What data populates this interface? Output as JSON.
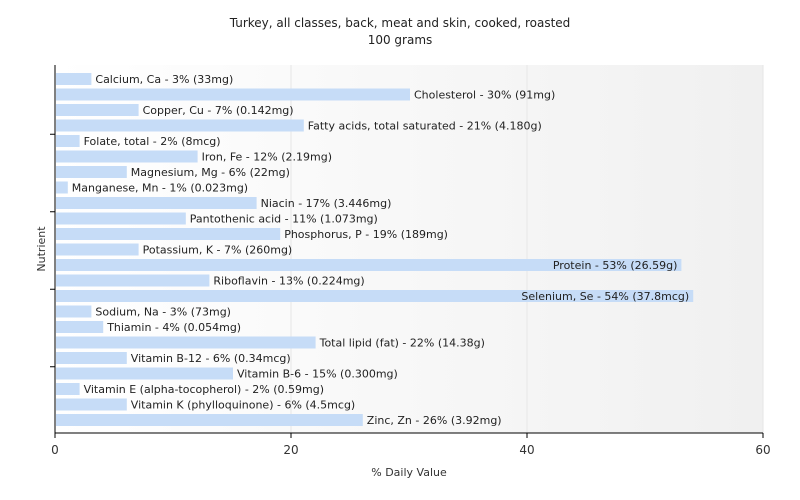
{
  "chart_data": {
    "type": "bar",
    "orientation": "horizontal",
    "title": "Turkey, all classes, back, meat and skin, cooked, roasted",
    "subtitle": "100 grams",
    "xlabel": "% Daily Value",
    "ylabel": "Nutrient",
    "xlim": [
      0,
      60
    ],
    "xticks": [
      "0",
      "20",
      "40",
      "60"
    ],
    "grid": true,
    "colors": {
      "bar": "#c6dcf7",
      "grid": "#e6e6e6",
      "axis": "#000000"
    },
    "bars": [
      {
        "value": 3,
        "label": "Calcium, Ca - 3% (33mg)"
      },
      {
        "value": 30,
        "label": "Cholesterol - 30% (91mg)"
      },
      {
        "value": 7,
        "label": "Copper, Cu - 7% (0.142mg)"
      },
      {
        "value": 21,
        "label": "Fatty acids, total saturated - 21% (4.180g)"
      },
      {
        "value": 2,
        "label": "Folate, total - 2% (8mcg)"
      },
      {
        "value": 12,
        "label": "Iron, Fe - 12% (2.19mg)"
      },
      {
        "value": 6,
        "label": "Magnesium, Mg - 6% (22mg)"
      },
      {
        "value": 1,
        "label": "Manganese, Mn - 1% (0.023mg)"
      },
      {
        "value": 17,
        "label": "Niacin - 17% (3.446mg)"
      },
      {
        "value": 11,
        "label": "Pantothenic acid - 11% (1.073mg)"
      },
      {
        "value": 19,
        "label": "Phosphorus, P - 19% (189mg)"
      },
      {
        "value": 7,
        "label": "Potassium, K - 7% (260mg)"
      },
      {
        "value": 53,
        "label": "Protein - 53% (26.59g)"
      },
      {
        "value": 13,
        "label": "Riboflavin - 13% (0.224mg)"
      },
      {
        "value": 54,
        "label": "Selenium, Se - 54% (37.8mcg)"
      },
      {
        "value": 3,
        "label": "Sodium, Na - 3% (73mg)"
      },
      {
        "value": 4,
        "label": "Thiamin - 4% (0.054mg)"
      },
      {
        "value": 22,
        "label": "Total lipid (fat) - 22% (14.38g)"
      },
      {
        "value": 6,
        "label": "Vitamin B-12 - 6% (0.34mcg)"
      },
      {
        "value": 15,
        "label": "Vitamin B-6 - 15% (0.300mg)"
      },
      {
        "value": 2,
        "label": "Vitamin E (alpha-tocopherol) - 2% (0.59mg)"
      },
      {
        "value": 6,
        "label": "Vitamin K (phylloquinone) - 6% (4.5mcg)"
      },
      {
        "value": 26,
        "label": "Zinc, Zn - 26% (3.92mg)"
      }
    ]
  }
}
